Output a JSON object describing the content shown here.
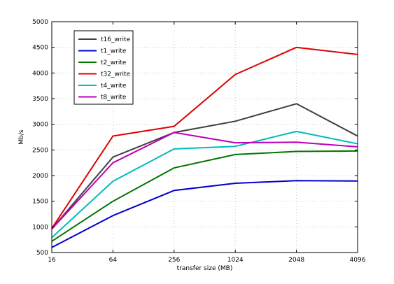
{
  "chart_data": {
    "type": "line",
    "xlabel": "transfer size (MB)",
    "ylabel": "Mb/s",
    "categories": [
      "16",
      "64",
      "256",
      "1024",
      "2048",
      "4096"
    ],
    "ylim": [
      500,
      5000
    ],
    "yticks": [
      500,
      1000,
      1500,
      2000,
      2500,
      3000,
      3500,
      4000,
      4500,
      5000
    ],
    "grid": true,
    "legend_position": "top-left",
    "series": [
      {
        "name": "t16_write",
        "color": "#404040",
        "values": [
          960,
          2360,
          2840,
          3060,
          3400,
          2770
        ]
      },
      {
        "name": "t1_write",
        "color": "#0000cc",
        "values": [
          600,
          1220,
          1710,
          1850,
          1900,
          1895
        ]
      },
      {
        "name": "t2_write",
        "color": "#007700",
        "values": [
          720,
          1500,
          2150,
          2410,
          2470,
          2480
        ]
      },
      {
        "name": "t32_write",
        "color": "#dd0000",
        "values": [
          970,
          2770,
          2960,
          3970,
          4500,
          4360
        ]
      },
      {
        "name": "t4_write",
        "color": "#00bbbb",
        "values": [
          790,
          1890,
          2520,
          2570,
          2860,
          2620
        ]
      },
      {
        "name": "t8_write",
        "color": "#bb00bb",
        "values": [
          960,
          2250,
          2840,
          2640,
          2650,
          2560
        ]
      }
    ]
  }
}
